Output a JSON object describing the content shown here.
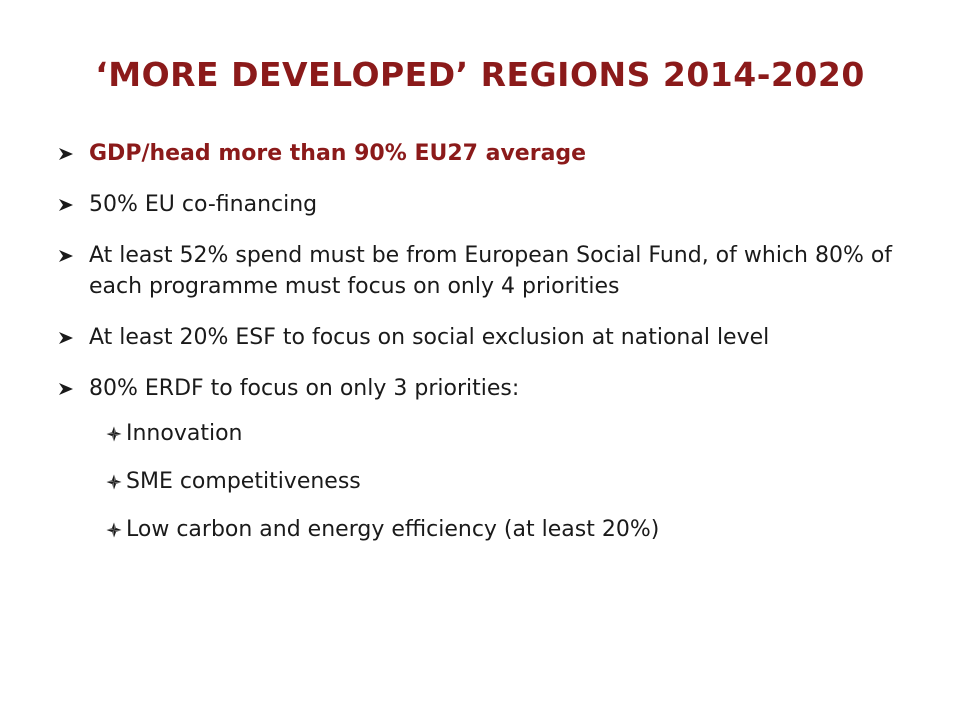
{
  "slide": {
    "title": "‘MORE DEVELOPED’ REGIONS 2014-2020",
    "accent_color": "#8b1a1a",
    "bullets": [
      {
        "text": "GDP/head more than 90% EU27 average",
        "icon": "arrow-bullet-icon"
      },
      {
        "text": "50% EU co-financing",
        "icon": "arrow-bullet-icon"
      },
      {
        "text": "At least 52% spend must be from European Social Fund, of which 80% of each programme must focus on only 4 priorities",
        "icon": "arrow-bullet-icon"
      },
      {
        "text": "At least 20% ESF to focus on social exclusion at national level",
        "icon": "arrow-bullet-icon"
      },
      {
        "text": "80% ERDF to focus on only 3 priorities:",
        "icon": "arrow-bullet-icon"
      }
    ],
    "sub_bullets": [
      {
        "text": "Innovation",
        "icon": "diamond-bullet-icon"
      },
      {
        "text": "SME competitiveness",
        "icon": "diamond-bullet-icon"
      },
      {
        "text": "Low carbon and energy efficiency (at least 20%)",
        "icon": "diamond-bullet-icon"
      }
    ]
  }
}
